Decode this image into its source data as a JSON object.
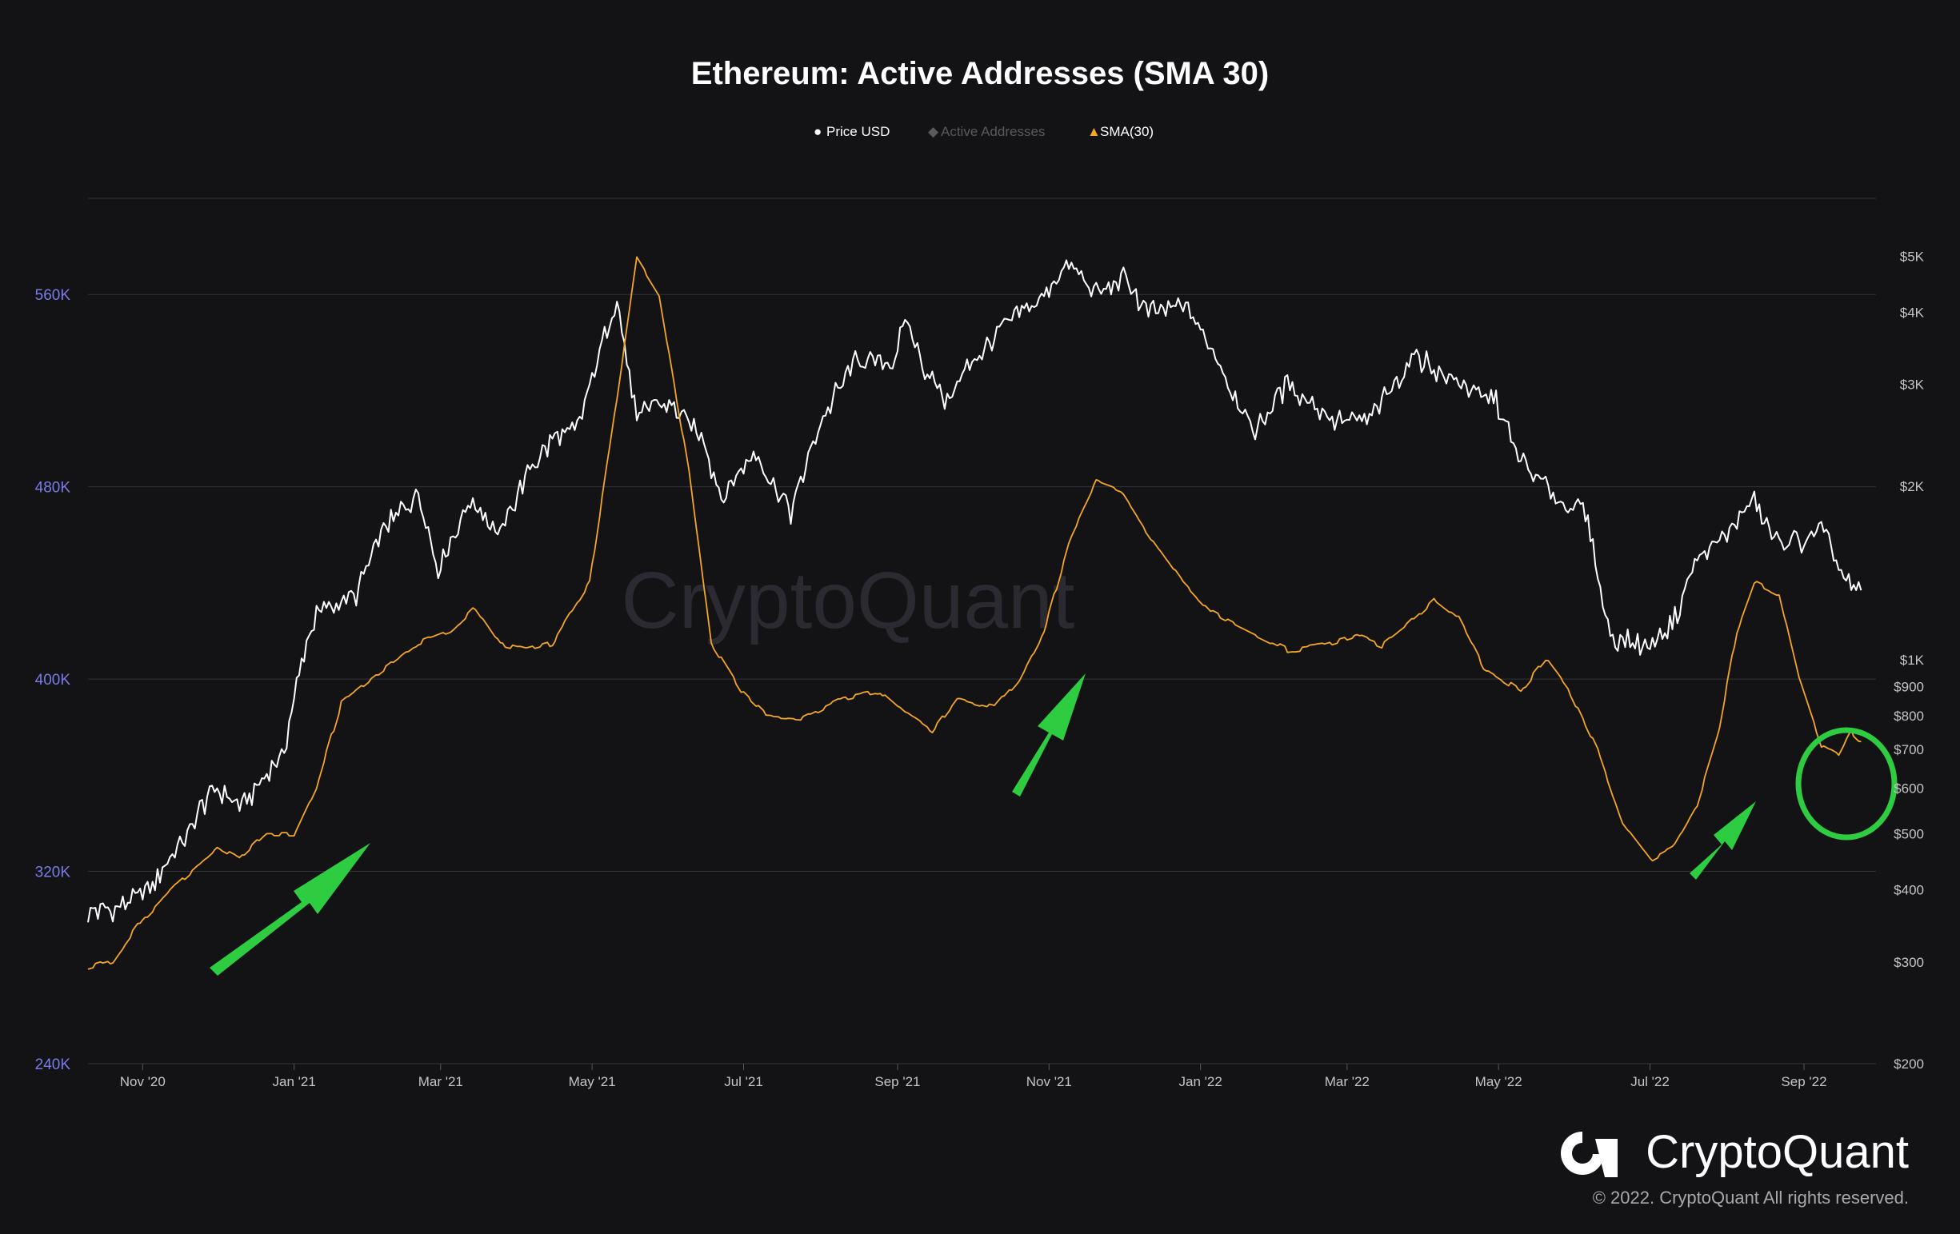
{
  "chart_data": {
    "type": "line",
    "title": "Ethereum: Active Addresses (SMA 30)",
    "legend": [
      {
        "label": "Price USD",
        "symbol": "●",
        "color": "#ffffff"
      },
      {
        "label": "Active Addresses",
        "symbol": "◆",
        "color": "#5a5a5a"
      },
      {
        "label": "SMA(30)",
        "symbol": "▲",
        "color": "#f5a623"
      }
    ],
    "x_ticks": [
      "Nov '20",
      "Jan '21",
      "Mar '21",
      "May '21",
      "Jul '21",
      "Sep '21",
      "Nov '21",
      "Jan '22",
      "Mar '22",
      "May '22",
      "Jul '22",
      "Sep '22"
    ],
    "x_range": [
      "2020-10-10",
      "2022-09-30"
    ],
    "y_left": {
      "ticks": [
        "560K",
        "480K",
        "400K",
        "320K",
        "240K"
      ],
      "range": [
        240000,
        600000
      ],
      "color": "#7b7be8"
    },
    "y_right": {
      "scale": "log",
      "ticks": [
        "$5K",
        "$4K",
        "$3K",
        "$2K",
        "$1K",
        "$900",
        "$800",
        "$700",
        "$600",
        "$500",
        "$400",
        "$300",
        "$200"
      ],
      "range": [
        200,
        6300
      ]
    },
    "grid": true,
    "series": [
      {
        "name": "Price USD",
        "axis": "right",
        "color": "#ffffff",
        "points": [
          [
            "2020-10-10",
            365
          ],
          [
            "2020-10-20",
            372
          ],
          [
            "2020-11-01",
            390
          ],
          [
            "2020-11-10",
            440
          ],
          [
            "2020-11-20",
            500
          ],
          [
            "2020-11-25",
            560
          ],
          [
            "2020-12-01",
            600
          ],
          [
            "2020-12-10",
            560
          ],
          [
            "2020-12-20",
            620
          ],
          [
            "2020-12-28",
            700
          ],
          [
            "2021-01-04",
            1000
          ],
          [
            "2021-01-10",
            1200
          ],
          [
            "2021-01-18",
            1250
          ],
          [
            "2021-01-26",
            1300
          ],
          [
            "2021-02-05",
            1650
          ],
          [
            "2021-02-12",
            1800
          ],
          [
            "2021-02-20",
            1950
          ],
          [
            "2021-02-28",
            1450
          ],
          [
            "2021-03-13",
            1900
          ],
          [
            "2021-03-25",
            1650
          ],
          [
            "2021-04-05",
            2100
          ],
          [
            "2021-04-15",
            2400
          ],
          [
            "2021-04-25",
            2500
          ],
          [
            "2021-05-03",
            3300
          ],
          [
            "2021-05-11",
            4200
          ],
          [
            "2021-05-19",
            2600
          ],
          [
            "2021-05-26",
            2800
          ],
          [
            "2021-06-05",
            2700
          ],
          [
            "2021-06-15",
            2400
          ],
          [
            "2021-06-22",
            1900
          ],
          [
            "2021-07-05",
            2300
          ],
          [
            "2021-07-20",
            1800
          ],
          [
            "2021-08-01",
            2600
          ],
          [
            "2021-08-15",
            3300
          ],
          [
            "2021-08-30",
            3300
          ],
          [
            "2021-09-05",
            3900
          ],
          [
            "2021-09-10",
            3300
          ],
          [
            "2021-09-21",
            2800
          ],
          [
            "2021-10-01",
            3300
          ],
          [
            "2021-10-15",
            3800
          ],
          [
            "2021-10-30",
            4300
          ],
          [
            "2021-11-09",
            4800
          ],
          [
            "2021-11-20",
            4300
          ],
          [
            "2021-12-01",
            4600
          ],
          [
            "2021-12-10",
            4000
          ],
          [
            "2021-12-25",
            4100
          ],
          [
            "2022-01-05",
            3500
          ],
          [
            "2022-01-22",
            2500
          ],
          [
            "2022-02-05",
            3000
          ],
          [
            "2022-02-24",
            2600
          ],
          [
            "2022-03-10",
            2600
          ],
          [
            "2022-03-28",
            3400
          ],
          [
            "2022-04-10",
            3100
          ],
          [
            "2022-04-30",
            2800
          ],
          [
            "2022-05-10",
            2200
          ],
          [
            "2022-05-25",
            1900
          ],
          [
            "2022-06-05",
            1800
          ],
          [
            "2022-06-15",
            1100
          ],
          [
            "2022-06-30",
            1050
          ],
          [
            "2022-07-10",
            1150
          ],
          [
            "2022-07-20",
            1500
          ],
          [
            "2022-08-01",
            1650
          ],
          [
            "2022-08-12",
            1900
          ],
          [
            "2022-08-20",
            1600
          ],
          [
            "2022-09-01",
            1600
          ],
          [
            "2022-09-08",
            1700
          ],
          [
            "2022-09-15",
            1450
          ],
          [
            "2022-09-21",
            1300
          ],
          [
            "2022-09-24",
            1320
          ]
        ]
      },
      {
        "name": "SMA(30)",
        "axis": "left",
        "color": "#f5a623",
        "points": [
          [
            "2020-10-10",
            280000
          ],
          [
            "2020-10-20",
            283000
          ],
          [
            "2020-11-01",
            300000
          ],
          [
            "2020-11-15",
            315000
          ],
          [
            "2020-12-01",
            330000
          ],
          [
            "2020-12-10",
            325000
          ],
          [
            "2020-12-20",
            335000
          ],
          [
            "2021-01-01",
            335000
          ],
          [
            "2021-01-10",
            355000
          ],
          [
            "2021-01-20",
            390000
          ],
          [
            "2021-02-01",
            400000
          ],
          [
            "2021-02-20",
            415000
          ],
          [
            "2021-03-05",
            420000
          ],
          [
            "2021-03-15",
            430000
          ],
          [
            "2021-03-25",
            415000
          ],
          [
            "2021-04-05",
            412000
          ],
          [
            "2021-04-15",
            415000
          ],
          [
            "2021-04-30",
            440000
          ],
          [
            "2021-05-10",
            510000
          ],
          [
            "2021-05-19",
            575000
          ],
          [
            "2021-05-28",
            560000
          ],
          [
            "2021-06-10",
            480000
          ],
          [
            "2021-06-18",
            415000
          ],
          [
            "2021-06-30",
            395000
          ],
          [
            "2021-07-10",
            385000
          ],
          [
            "2021-07-25",
            384000
          ],
          [
            "2021-08-10",
            392000
          ],
          [
            "2021-08-25",
            395000
          ],
          [
            "2021-09-05",
            385000
          ],
          [
            "2021-09-15",
            378000
          ],
          [
            "2021-09-25",
            392000
          ],
          [
            "2021-10-10",
            388000
          ],
          [
            "2021-10-20",
            400000
          ],
          [
            "2021-10-30",
            420000
          ],
          [
            "2021-11-10",
            460000
          ],
          [
            "2021-11-20",
            482000
          ],
          [
            "2021-11-30",
            478000
          ],
          [
            "2021-12-10",
            462000
          ],
          [
            "2021-12-25",
            440000
          ],
          [
            "2022-01-05",
            428000
          ],
          [
            "2022-01-20",
            420000
          ],
          [
            "2022-02-05",
            412000
          ],
          [
            "2022-02-20",
            414000
          ],
          [
            "2022-03-05",
            418000
          ],
          [
            "2022-03-15",
            414000
          ],
          [
            "2022-03-25",
            422000
          ],
          [
            "2022-04-05",
            433000
          ],
          [
            "2022-04-15",
            425000
          ],
          [
            "2022-04-25",
            405000
          ],
          [
            "2022-05-10",
            395000
          ],
          [
            "2022-05-20",
            408000
          ],
          [
            "2022-05-30",
            394000
          ],
          [
            "2022-06-10",
            370000
          ],
          [
            "2022-06-20",
            340000
          ],
          [
            "2022-07-01",
            325000
          ],
          [
            "2022-07-10",
            330000
          ],
          [
            "2022-07-20",
            348000
          ],
          [
            "2022-07-28",
            375000
          ],
          [
            "2022-08-05",
            420000
          ],
          [
            "2022-08-12",
            440000
          ],
          [
            "2022-08-22",
            435000
          ],
          [
            "2022-08-30",
            400000
          ],
          [
            "2022-09-08",
            372000
          ],
          [
            "2022-09-15",
            368000
          ],
          [
            "2022-09-20",
            378000
          ],
          [
            "2022-09-24",
            374000
          ]
        ]
      }
    ]
  },
  "watermark": "CryptoQuant",
  "brand": "CryptoQuant",
  "copyright": "© 2022. CryptoQuant All rights reserved.",
  "colors": {
    "background": "#131316",
    "grid": "#33333a",
    "annotation": "#2ecc40"
  }
}
